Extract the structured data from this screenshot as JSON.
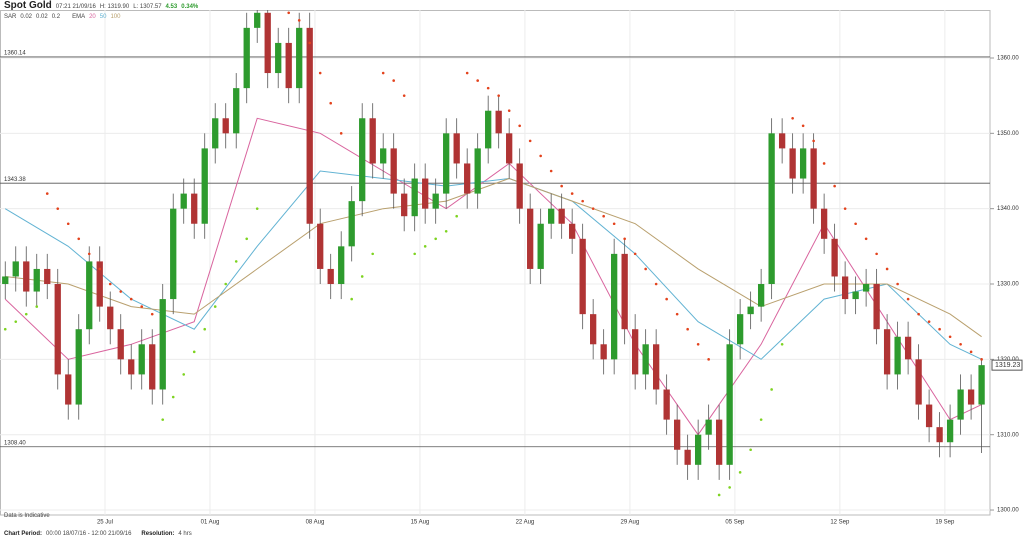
{
  "header": {
    "title": "Spot Gold",
    "time": "07:21 21/09/16",
    "high": "H: 1319.90",
    "low": "L: 1307.57",
    "change": "4.53",
    "change_pct": "0.34%"
  },
  "footer": {
    "note": "Data is Indicative",
    "period_label": "Chart Period:",
    "period": "00:00 18/07/16 - 12:00 21/09/16",
    "resolution_label": "Resolution:",
    "resolution": "4 hrs"
  },
  "chart_data": {
    "type": "candlestick",
    "x": [
      0,
      1,
      2,
      3,
      4,
      5,
      6,
      7,
      8,
      9,
      10,
      11,
      12,
      13,
      14,
      15,
      16,
      17,
      18,
      19,
      20,
      21,
      22,
      23,
      24,
      25,
      26,
      27,
      28,
      29,
      30,
      31,
      32,
      33,
      34,
      35,
      36,
      37,
      38,
      39,
      40,
      41,
      42,
      43,
      44,
      45,
      46,
      47,
      48,
      49,
      50,
      51,
      52,
      53,
      54,
      55,
      56,
      57,
      58,
      59,
      60,
      61,
      62,
      63,
      64,
      65,
      66,
      67,
      68,
      69,
      70,
      71,
      72,
      73,
      74,
      75,
      76,
      77,
      78,
      79,
      80,
      81,
      82,
      83,
      84,
      85,
      86,
      87,
      88,
      89,
      90,
      91,
      92,
      93
    ],
    "open": [
      1330,
      1331,
      1333,
      1329,
      1332,
      1330,
      1318,
      1314,
      1324,
      1333,
      1327,
      1324,
      1320,
      1318,
      1322,
      1316,
      1328,
      1340,
      1342,
      1338,
      1348,
      1352,
      1350,
      1356,
      1364,
      1366,
      1358,
      1362,
      1356,
      1364,
      1338,
      1332,
      1330,
      1335,
      1341,
      1352,
      1346,
      1348,
      1342,
      1339,
      1344,
      1340,
      1342,
      1350,
      1346,
      1342,
      1348,
      1353,
      1350,
      1346,
      1340,
      1332,
      1338,
      1340,
      1338,
      1336,
      1326,
      1322,
      1320,
      1334,
      1324,
      1318,
      1322,
      1316,
      1312,
      1308,
      1306,
      1310,
      1312,
      1306,
      1322,
      1326,
      1327,
      1330,
      1350,
      1348,
      1344,
      1348,
      1340,
      1336,
      1331,
      1328,
      1329,
      1330,
      1324,
      1318,
      1323,
      1320,
      1314,
      1311,
      1309,
      1312,
      1316,
      1314
    ],
    "high": [
      1333,
      1335,
      1335,
      1334,
      1334,
      1332,
      1320,
      1326,
      1335,
      1335,
      1329,
      1326,
      1322,
      1324,
      1324,
      1330,
      1342,
      1344,
      1344,
      1350,
      1354,
      1354,
      1358,
      1366,
      1368,
      1368,
      1364,
      1364,
      1366,
      1366,
      1340,
      1334,
      1337,
      1343,
      1354,
      1354,
      1350,
      1350,
      1344,
      1346,
      1346,
      1344,
      1352,
      1352,
      1348,
      1350,
      1355,
      1355,
      1352,
      1348,
      1342,
      1340,
      1342,
      1342,
      1340,
      1338,
      1328,
      1324,
      1336,
      1336,
      1326,
      1324,
      1324,
      1318,
      1314,
      1310,
      1312,
      1314,
      1314,
      1324,
      1328,
      1329,
      1332,
      1352,
      1352,
      1350,
      1350,
      1350,
      1342,
      1338,
      1333,
      1331,
      1332,
      1332,
      1326,
      1325,
      1325,
      1322,
      1316,
      1313,
      1314,
      1318,
      1318,
      1319.9
    ],
    "low": [
      1328,
      1329,
      1327,
      1327,
      1328,
      1316,
      1312,
      1312,
      1322,
      1325,
      1322,
      1318,
      1316,
      1316,
      1314,
      1314,
      1326,
      1338,
      1336,
      1336,
      1346,
      1348,
      1348,
      1354,
      1362,
      1356,
      1356,
      1354,
      1354,
      1336,
      1330,
      1328,
      1328,
      1333,
      1339,
      1344,
      1344,
      1340,
      1337,
      1337,
      1338,
      1338,
      1340,
      1344,
      1340,
      1340,
      1346,
      1348,
      1344,
      1338,
      1330,
      1330,
      1336,
      1336,
      1334,
      1324,
      1320,
      1318,
      1318,
      1322,
      1316,
      1316,
      1314,
      1310,
      1306,
      1304,
      1304,
      1308,
      1304,
      1304,
      1320,
      1324,
      1325,
      1328,
      1346,
      1342,
      1342,
      1338,
      1334,
      1329,
      1326,
      1326,
      1327,
      1322,
      1316,
      1316,
      1318,
      1312,
      1309,
      1307,
      1307,
      1310,
      1312,
      1307.57
    ],
    "close": [
      1331,
      1333,
      1329,
      1332,
      1330,
      1318,
      1314,
      1324,
      1333,
      1327,
      1324,
      1320,
      1318,
      1322,
      1316,
      1328,
      1340,
      1342,
      1338,
      1348,
      1352,
      1350,
      1356,
      1364,
      1366,
      1358,
      1362,
      1356,
      1364,
      1338,
      1332,
      1330,
      1335,
      1341,
      1352,
      1346,
      1348,
      1342,
      1339,
      1344,
      1340,
      1342,
      1350,
      1346,
      1342,
      1348,
      1353,
      1350,
      1346,
      1340,
      1332,
      1338,
      1340,
      1338,
      1336,
      1326,
      1322,
      1320,
      1334,
      1324,
      1318,
      1322,
      1316,
      1312,
      1308,
      1306,
      1310,
      1312,
      1306,
      1322,
      1326,
      1327,
      1330,
      1350,
      1348,
      1344,
      1348,
      1340,
      1336,
      1331,
      1328,
      1329,
      1330,
      1324,
      1318,
      1323,
      1320,
      1314,
      1311,
      1309,
      1312,
      1316,
      1314,
      1319.23
    ],
    "up_color": "#2e9b2e",
    "down_color": "#b03434",
    "xlim": [
      -0.5,
      93.8
    ],
    "xticks": [
      {
        "value": 9.5,
        "label": "25 Jul"
      },
      {
        "value": 19.5,
        "label": "01 Aug"
      },
      {
        "value": 29.5,
        "label": "08 Aug"
      },
      {
        "value": 39.5,
        "label": "15 Aug"
      },
      {
        "value": 49.5,
        "label": "22 Aug"
      },
      {
        "value": 59.5,
        "label": "29 Aug"
      },
      {
        "value": 69.5,
        "label": "05 Sep"
      },
      {
        "value": 79.5,
        "label": "12 Sep"
      },
      {
        "value": 89.5,
        "label": "19 Sep"
      }
    ],
    "ylim": [
      1299.34,
      1366.37
    ],
    "yticks": [
      {
        "value": 1300,
        "label": "1300.00"
      },
      {
        "value": 1310,
        "label": "1310.00"
      },
      {
        "value": 1320,
        "label": "1320.00"
      },
      {
        "value": 1330,
        "label": "1330.00"
      },
      {
        "value": 1340,
        "label": "1340.00"
      },
      {
        "value": 1350,
        "label": "1350.00"
      },
      {
        "value": 1360,
        "label": "1360.00"
      }
    ],
    "grid": true,
    "levels": [
      1360.14,
      1343.38,
      {
        "value": 1308.4,
        "label": "1308.40"
      }
    ],
    "sar": {
      "label": "SAR",
      "params": [
        "0.02",
        "0.02",
        "0.2"
      ],
      "color_above": "#e3421c",
      "color_below": "#7ed321",
      "values": [
        1324,
        1325,
        1326,
        1327,
        1342,
        1340,
        1338,
        1336,
        1334,
        1332,
        1330,
        1329,
        1328,
        1327,
        1326,
        1312,
        1315,
        1318,
        1321,
        1324,
        1327,
        1330,
        1333,
        1336,
        1340,
        1368,
        1367,
        1366,
        1365,
        1362,
        1358,
        1354,
        1350,
        1328,
        1331,
        1334,
        1358,
        1357,
        1355,
        1334,
        1335,
        1336,
        1337,
        1339,
        1358,
        1357,
        1356,
        1355,
        1353,
        1351,
        1349,
        1347,
        1345,
        1343,
        1342,
        1341,
        1340,
        1339,
        1338,
        1336,
        1334,
        1332,
        1330,
        1328,
        1326,
        1324,
        1322,
        1320,
        1302,
        1303,
        1305,
        1308,
        1312,
        1316,
        1322,
        1352,
        1351,
        1349,
        1346,
        1343,
        1340,
        1338,
        1336,
        1334,
        1332,
        1330,
        1328,
        1326,
        1325,
        1324,
        1323,
        1322,
        1321,
        1320
      ]
    },
    "ema": {
      "label": "EMA",
      "series": [
        {
          "name": "20",
          "color": "#d9649e",
          "x": [
            0,
            6,
            12,
            18,
            24,
            30,
            36,
            42,
            48,
            54,
            60,
            66,
            72,
            78,
            84,
            90,
            93
          ],
          "values": [
            1328,
            1320,
            1322,
            1325,
            1352,
            1350,
            1345,
            1340,
            1346,
            1338,
            1322,
            1310,
            1322,
            1338,
            1325,
            1312,
            1314
          ]
        },
        {
          "name": "50",
          "color": "#62b3d3",
          "x": [
            0,
            6,
            12,
            18,
            24,
            30,
            36,
            42,
            48,
            54,
            60,
            66,
            72,
            78,
            84,
            90,
            93
          ],
          "values": [
            1340,
            1335,
            1328,
            1324,
            1335,
            1345,
            1344,
            1343,
            1344,
            1341,
            1334,
            1325,
            1320,
            1328,
            1330,
            1322,
            1320
          ]
        },
        {
          "name": "100",
          "color": "#b9a06e",
          "x": [
            0,
            6,
            12,
            18,
            24,
            30,
            36,
            42,
            48,
            54,
            60,
            66,
            72,
            78,
            84,
            90,
            93
          ],
          "values": [
            1331,
            1330,
            1327,
            1326,
            1332,
            1338,
            1340,
            1341,
            1344,
            1341,
            1338,
            1332,
            1327,
            1330,
            1330,
            1326,
            1323
          ]
        }
      ]
    }
  }
}
